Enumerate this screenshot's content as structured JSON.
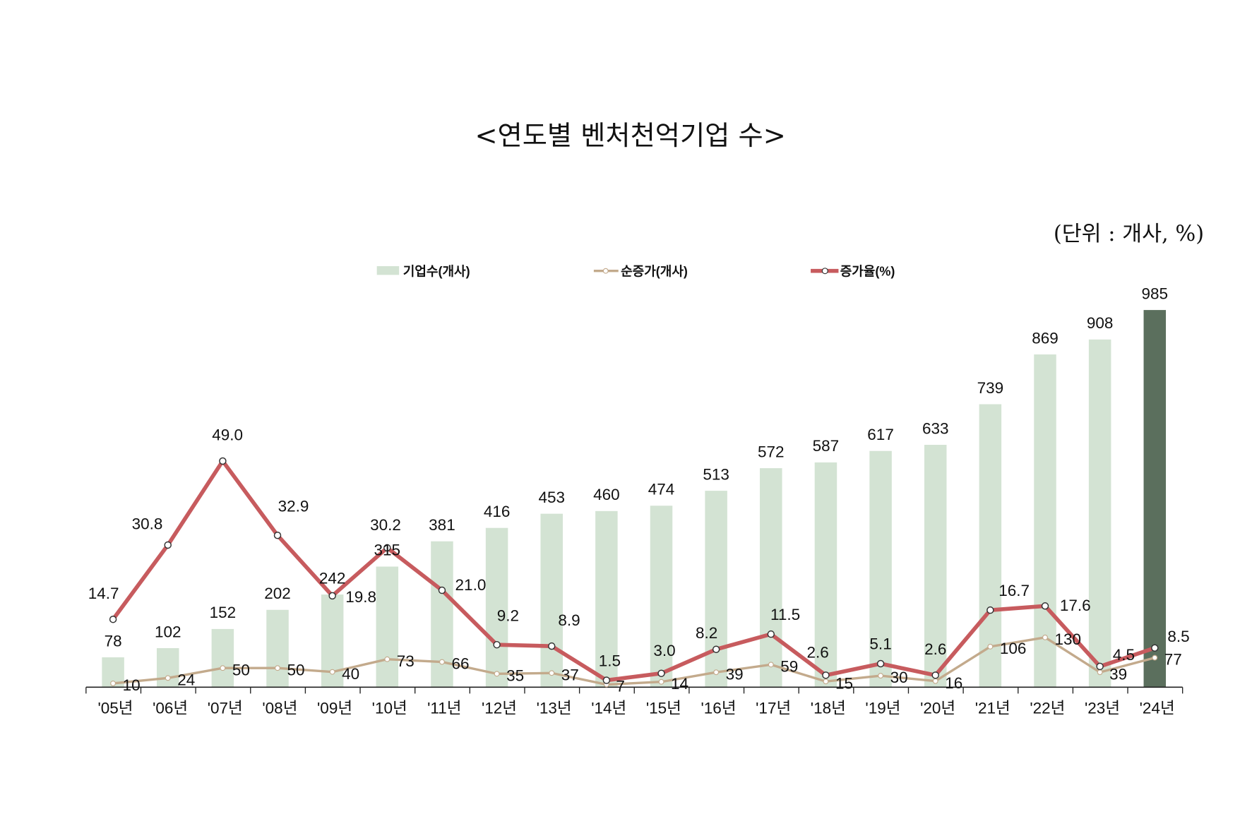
{
  "chart_data": {
    "type": "bar",
    "title": "<연도별 벤처천억기업 수>",
    "unit_label": "(단위 : 개사, %)",
    "categories": [
      "'05년",
      "'06년",
      "'07년",
      "'08년",
      "'09년",
      "'10년",
      "'11년",
      "'12년",
      "'13년",
      "'14년",
      "'15년",
      "'16년",
      "'17년",
      "'18년",
      "'19년",
      "'20년",
      "'21년",
      "'22년",
      "'23년",
      "'24년"
    ],
    "series": [
      {
        "name": "기업수(개사)",
        "type": "bar",
        "color": "#d3e3d3",
        "highlight_color": "#5b6f5d",
        "values": [
          78,
          102,
          152,
          202,
          242,
          315,
          381,
          416,
          453,
          460,
          474,
          513,
          572,
          587,
          617,
          633,
          739,
          869,
          908,
          985
        ]
      },
      {
        "name": "순증가(개사)",
        "type": "line",
        "color": "#c3aa8c",
        "values": [
          10,
          24,
          50,
          50,
          40,
          73,
          66,
          35,
          37,
          7,
          14,
          39,
          59,
          15,
          30,
          16,
          106,
          130,
          39,
          77
        ]
      },
      {
        "name": "증가율(%)",
        "type": "line",
        "color": "#c75b5e",
        "values_text": [
          "14.7",
          "30.8",
          "49.0",
          "32.9",
          "19.8",
          "30.2",
          "21.0",
          "9.2",
          "8.9",
          "1.5",
          "3.0",
          "8.2",
          "11.5",
          "2.6",
          "5.1",
          "2.6",
          "16.7",
          "17.6",
          "4.5",
          "8.5"
        ],
        "values": [
          14.7,
          30.8,
          49.0,
          32.9,
          19.8,
          30.2,
          21.0,
          9.2,
          8.9,
          1.5,
          3.0,
          8.2,
          11.5,
          2.6,
          5.1,
          2.6,
          16.7,
          17.6,
          4.5,
          8.5
        ]
      }
    ],
    "legend": "top-center",
    "grid": false
  }
}
